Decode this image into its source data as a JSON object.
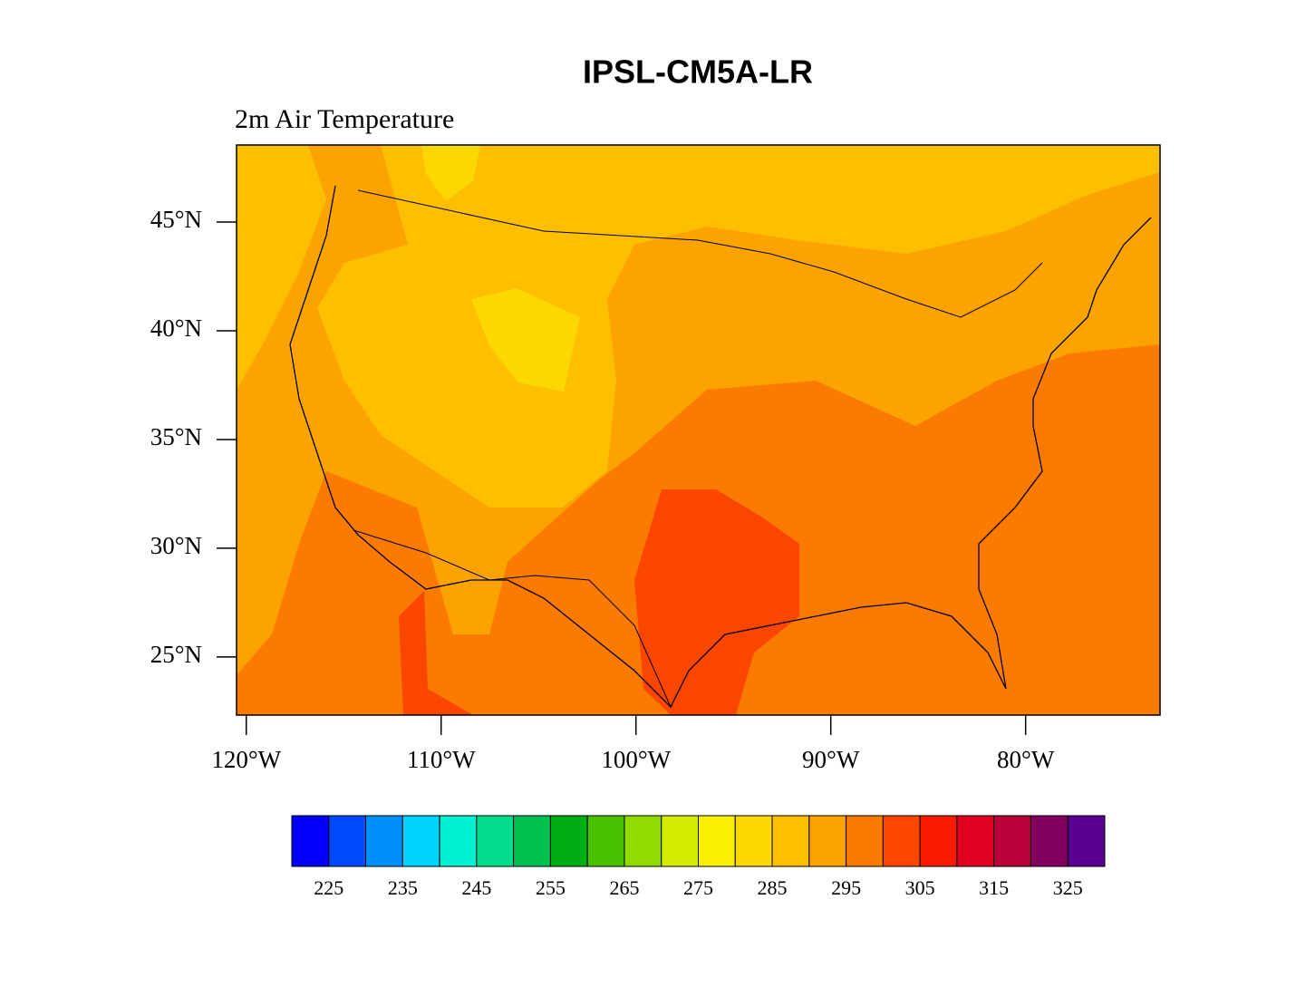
{
  "chart_data": {
    "type": "contour-map",
    "title": "IPSL-CM5A-LR",
    "subtitle": "2m Air Temperature",
    "xlim": [
      -120.5,
      -73.1
    ],
    "ylim": [
      22.33,
      48.54
    ],
    "xticks": [
      {
        "value": -120,
        "label": "120°W"
      },
      {
        "value": -110,
        "label": "110°W"
      },
      {
        "value": -100,
        "label": "100°W"
      },
      {
        "value": -90,
        "label": "90°W"
      },
      {
        "value": -80,
        "label": "80°W"
      }
    ],
    "yticks": [
      {
        "value": 25,
        "label": "25°N"
      },
      {
        "value": 30,
        "label": "30°N"
      },
      {
        "value": 35,
        "label": "35°N"
      },
      {
        "value": 40,
        "label": "40°N"
      },
      {
        "value": 45,
        "label": "45°N"
      }
    ],
    "colorbar": {
      "colors": [
        "#0000fb",
        "#0048fb",
        "#0090fb",
        "#00d2fb",
        "#00f0d2",
        "#00dc8c",
        "#00c050",
        "#00ae14",
        "#48c000",
        "#90dc00",
        "#d2ec00",
        "#f8f000",
        "#fdd700",
        "#fdbf00",
        "#fca300",
        "#fb7a00",
        "#fb4600",
        "#f91a00",
        "#e00020",
        "#b90038",
        "#820060",
        "#5a0090"
      ],
      "ticks": [
        225,
        235,
        245,
        255,
        265,
        275,
        285,
        295,
        305,
        315,
        325
      ]
    }
  }
}
